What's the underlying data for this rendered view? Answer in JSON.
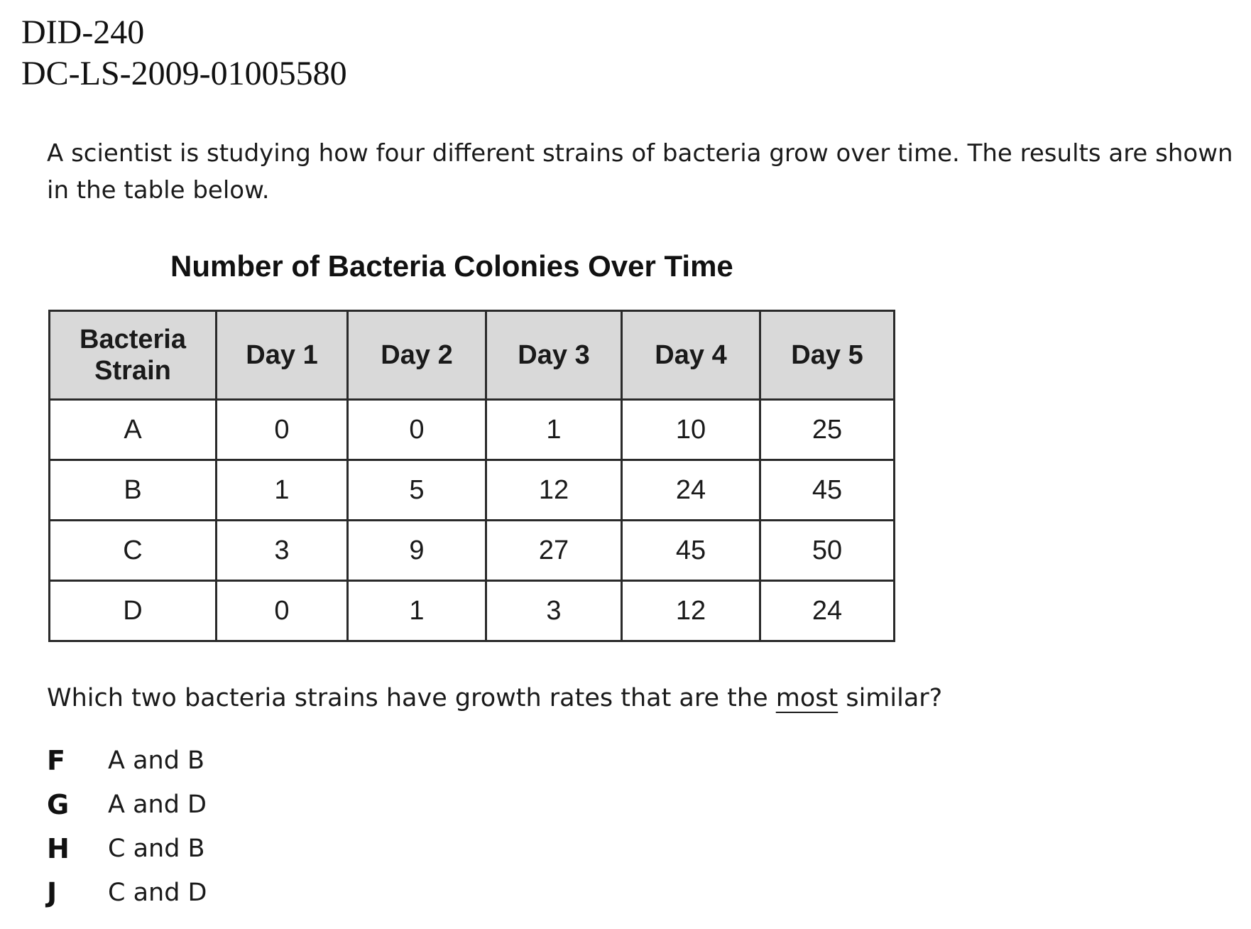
{
  "header": {
    "doc_id_line1": "DID-240",
    "doc_id_line2": "DC-LS-2009-01005580"
  },
  "intro_text": "A scientist is studying how four different strains of bacteria grow over time. The results are shown in the table below.",
  "table": {
    "title": "Number of Bacteria Colonies Over Time",
    "header_strain_line1": "Bacteria",
    "header_strain_line2": "Strain",
    "columns": [
      "Day 1",
      "Day 2",
      "Day 3",
      "Day 4",
      "Day 5"
    ],
    "rows": [
      {
        "strain": "A",
        "values": [
          "0",
          "0",
          "1",
          "10",
          "25"
        ]
      },
      {
        "strain": "B",
        "values": [
          "1",
          "5",
          "12",
          "24",
          "45"
        ]
      },
      {
        "strain": "C",
        "values": [
          "3",
          "9",
          "27",
          "45",
          "50"
        ]
      },
      {
        "strain": "D",
        "values": [
          "0",
          "1",
          "3",
          "12",
          "24"
        ]
      }
    ]
  },
  "question": {
    "before": "Which two bacteria strains have growth rates that are the ",
    "emphasis": "most",
    "after": " similar?"
  },
  "choices": [
    {
      "letter": "F",
      "text": "A and B"
    },
    {
      "letter": "G",
      "text": "A and D"
    },
    {
      "letter": "H",
      "text": "C and B"
    },
    {
      "letter": "J",
      "text": "C and D"
    }
  ]
}
